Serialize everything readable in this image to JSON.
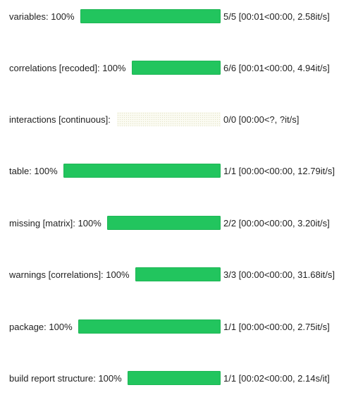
{
  "progress_bars": [
    {
      "label": "variables: 100%",
      "progress": 1.0,
      "stats": "5/5 [00:01<00:00, 2.58it/s]"
    },
    {
      "label": "correlations [recoded]: 100%",
      "progress": 1.0,
      "stats": "6/6 [00:01<00:00, 4.94it/s]"
    },
    {
      "label": "interactions [continuous]:",
      "progress": 0.0,
      "stats": "0/0 [00:00<?, ?it/s]"
    },
    {
      "label": "table: 100%",
      "progress": 1.0,
      "stats": "1/1 [00:00<00:00, 12.79it/s]"
    },
    {
      "label": "missing [matrix]: 100%",
      "progress": 1.0,
      "stats": "2/2 [00:00<00:00, 3.20it/s]"
    },
    {
      "label": "warnings [correlations]: 100%",
      "progress": 1.0,
      "stats": "3/3 [00:00<00:00, 31.68it/s]"
    },
    {
      "label": "package: 100%",
      "progress": 1.0,
      "stats": "1/1 [00:00<00:00, 2.75it/s]"
    },
    {
      "label": "build report structure: 100%",
      "progress": 1.0,
      "stats": "1/1 [00:02<00:00, 2.14s/it]"
    }
  ],
  "colors": {
    "bar_fill": "#22c55e",
    "text": "#222222",
    "background": "#ffffff"
  }
}
